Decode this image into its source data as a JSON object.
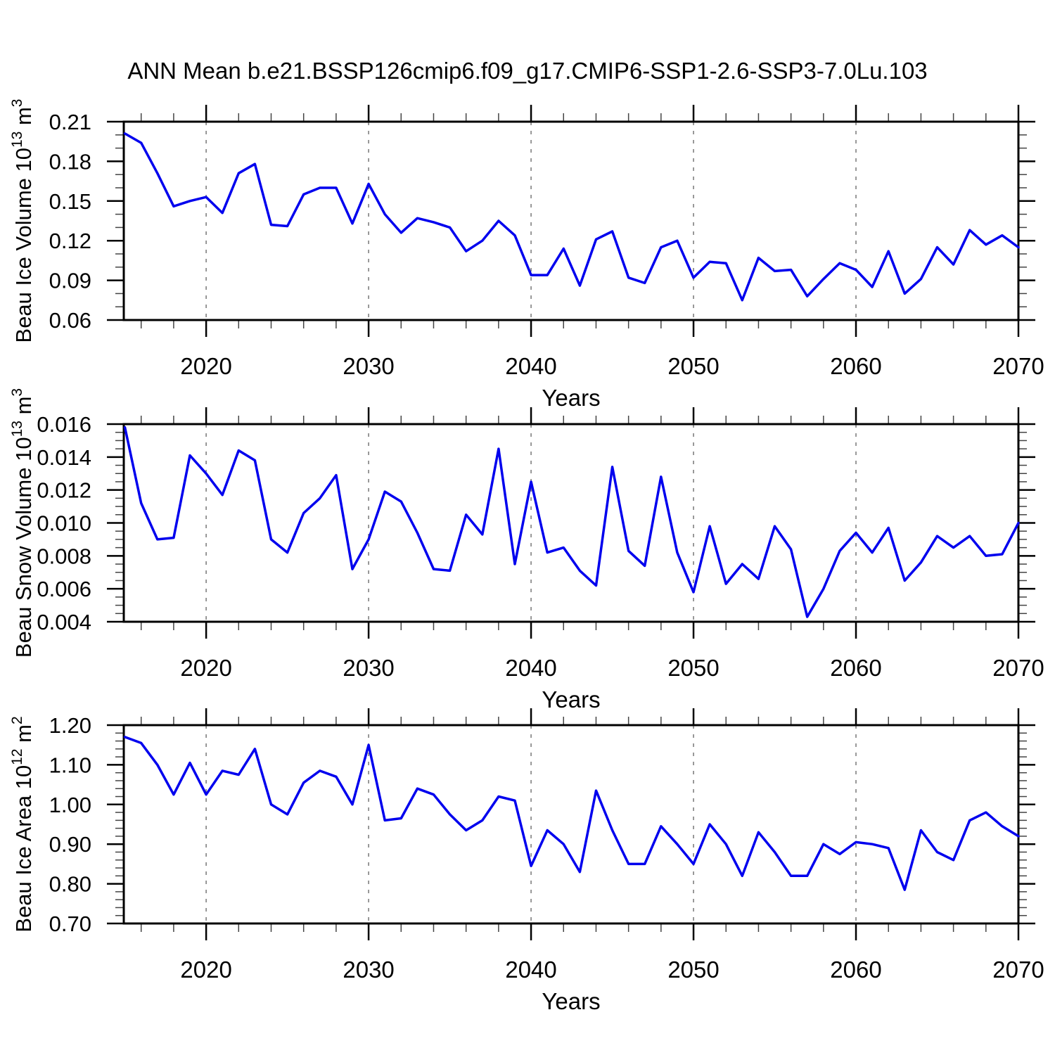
{
  "title": "ANN Mean b.e21.BSSP126cmip6.f09_g17.CMIP6-SSP1-2.6-SSP3-7.0Lu.103",
  "colors": {
    "line": "#0000EE",
    "grid": "#777777",
    "axis": "#000000"
  },
  "chart_data": [
    {
      "type": "line",
      "id": "beau-ice-volume",
      "ylabel_segments": [
        {
          "t": "Beau Ice Volume 10"
        },
        {
          "t": "13",
          "sup": true
        },
        {
          "t": " m"
        },
        {
          "t": "3",
          "sup": true
        }
      ],
      "ylabel_plain": "Beau Ice Volume 10^13 m^3",
      "xlabel": "Years",
      "xlim": [
        2014.93,
        2070
      ],
      "ylim": [
        0.06,
        0.21
      ],
      "xticks": [
        2020,
        2030,
        2040,
        2050,
        2060,
        2070
      ],
      "xtick_labels": [
        "2020",
        "2030",
        "2040",
        "2050",
        "2060",
        "2070"
      ],
      "x_minor_step": 2,
      "grid_years": [
        2020,
        2030,
        2040,
        2050,
        2060
      ],
      "yticks": [
        0.21,
        0.18,
        0.15,
        0.12,
        0.09,
        0.06
      ],
      "ytick_labels": [
        "0.21",
        "0.18",
        "0.15",
        "0.12",
        "0.09",
        "0.06"
      ],
      "y_minor_step": 0.01,
      "years": [
        2015,
        2016,
        2017,
        2018,
        2019,
        2020,
        2021,
        2022,
        2023,
        2024,
        2025,
        2026,
        2027,
        2028,
        2029,
        2030,
        2031,
        2032,
        2033,
        2034,
        2035,
        2036,
        2037,
        2038,
        2039,
        2040,
        2041,
        2042,
        2043,
        2044,
        2045,
        2046,
        2047,
        2048,
        2049,
        2050,
        2051,
        2052,
        2053,
        2054,
        2055,
        2056,
        2057,
        2058,
        2059,
        2060,
        2061,
        2062,
        2063,
        2064,
        2065,
        2066,
        2067,
        2068,
        2069,
        2070
      ],
      "values": [
        0.201,
        0.194,
        0.171,
        0.146,
        0.15,
        0.153,
        0.141,
        0.171,
        0.178,
        0.132,
        0.131,
        0.155,
        0.16,
        0.16,
        0.133,
        0.163,
        0.14,
        0.126,
        0.137,
        0.134,
        0.13,
        0.112,
        0.12,
        0.135,
        0.124,
        0.094,
        0.094,
        0.114,
        0.086,
        0.121,
        0.127,
        0.092,
        0.088,
        0.115,
        0.12,
        0.092,
        0.104,
        0.103,
        0.075,
        0.107,
        0.097,
        0.098,
        0.078,
        0.091,
        0.103,
        0.098,
        0.085,
        0.112,
        0.08,
        0.091,
        0.115,
        0.102,
        0.128,
        0.117,
        0.124,
        0.115
      ]
    },
    {
      "type": "line",
      "id": "beau-snow-volume",
      "ylabel_segments": [
        {
          "t": "Beau Snow Volume 10"
        },
        {
          "t": "13",
          "sup": true
        },
        {
          "t": " m"
        },
        {
          "t": "3",
          "sup": true
        }
      ],
      "ylabel_plain": "Beau Snow Volume 10^13 m^3",
      "xlabel": "Years",
      "xlim": [
        2014.93,
        2070
      ],
      "ylim": [
        0.004,
        0.016
      ],
      "xticks": [
        2020,
        2030,
        2040,
        2050,
        2060,
        2070
      ],
      "xtick_labels": [
        "2020",
        "2030",
        "2040",
        "2050",
        "2060",
        "2070"
      ],
      "x_minor_step": 2,
      "grid_years": [
        2020,
        2030,
        2040,
        2050,
        2060
      ],
      "yticks": [
        0.016,
        0.014,
        0.012,
        0.01,
        0.008,
        0.006,
        0.004
      ],
      "ytick_labels": [
        "0.016",
        "0.014",
        "0.012",
        "0.010",
        "0.008",
        "0.006",
        "0.004"
      ],
      "y_minor_step": 0.0005,
      "years": [
        2015,
        2016,
        2017,
        2018,
        2019,
        2020,
        2021,
        2022,
        2023,
        2024,
        2025,
        2026,
        2027,
        2028,
        2029,
        2030,
        2031,
        2032,
        2033,
        2034,
        2035,
        2036,
        2037,
        2038,
        2039,
        2040,
        2041,
        2042,
        2043,
        2044,
        2045,
        2046,
        2047,
        2048,
        2049,
        2050,
        2051,
        2052,
        2053,
        2054,
        2055,
        2056,
        2057,
        2058,
        2059,
        2060,
        2061,
        2062,
        2063,
        2064,
        2065,
        2066,
        2067,
        2068,
        2069,
        2070
      ],
      "values": [
        0.0158,
        0.0112,
        0.009,
        0.0091,
        0.0141,
        0.013,
        0.0117,
        0.0144,
        0.0138,
        0.009,
        0.0082,
        0.0106,
        0.0115,
        0.0129,
        0.0072,
        0.009,
        0.0119,
        0.0113,
        0.0094,
        0.0072,
        0.0071,
        0.0105,
        0.0093,
        0.0145,
        0.0075,
        0.0125,
        0.0082,
        0.0085,
        0.0071,
        0.0062,
        0.0134,
        0.0083,
        0.0074,
        0.0128,
        0.0082,
        0.0058,
        0.0098,
        0.0063,
        0.0075,
        0.0066,
        0.0098,
        0.0084,
        0.0043,
        0.006,
        0.0083,
        0.0094,
        0.0082,
        0.0097,
        0.0065,
        0.0076,
        0.0092,
        0.0085,
        0.0092,
        0.008,
        0.0081,
        0.01
      ]
    },
    {
      "type": "line",
      "id": "beau-ice-area",
      "ylabel_segments": [
        {
          "t": "Beau Ice Area 10"
        },
        {
          "t": "12",
          "sup": true
        },
        {
          "t": " m"
        },
        {
          "t": "2",
          "sup": true
        }
      ],
      "ylabel_plain": "Beau Ice Area 10^12 m^2",
      "xlabel": "Years",
      "xlim": [
        2014.93,
        2070
      ],
      "ylim": [
        0.7,
        1.2
      ],
      "xticks": [
        2020,
        2030,
        2040,
        2050,
        2060,
        2070
      ],
      "xtick_labels": [
        "2020",
        "2030",
        "2040",
        "2050",
        "2060",
        "2070"
      ],
      "x_minor_step": 2,
      "grid_years": [
        2020,
        2030,
        2040,
        2050,
        2060
      ],
      "yticks": [
        1.2,
        1.1,
        1.0,
        0.9,
        0.8,
        0.7
      ],
      "ytick_labels": [
        "1.20",
        "1.10",
        "1.00",
        "0.90",
        "0.80",
        "0.70"
      ],
      "y_minor_step": 0.02,
      "years": [
        2015,
        2016,
        2017,
        2018,
        2019,
        2020,
        2021,
        2022,
        2023,
        2024,
        2025,
        2026,
        2027,
        2028,
        2029,
        2030,
        2031,
        2032,
        2033,
        2034,
        2035,
        2036,
        2037,
        2038,
        2039,
        2040,
        2041,
        2042,
        2043,
        2044,
        2045,
        2046,
        2047,
        2048,
        2049,
        2050,
        2051,
        2052,
        2053,
        2054,
        2055,
        2056,
        2057,
        2058,
        2059,
        2060,
        2061,
        2062,
        2063,
        2064,
        2065,
        2066,
        2067,
        2068,
        2069,
        2070
      ],
      "values": [
        1.17,
        1.155,
        1.1,
        1.025,
        1.105,
        1.025,
        1.085,
        1.075,
        1.14,
        1.0,
        0.975,
        1.055,
        1.085,
        1.07,
        1.0,
        1.15,
        0.96,
        0.965,
        1.04,
        1.025,
        0.975,
        0.935,
        0.96,
        1.02,
        1.01,
        0.845,
        0.935,
        0.9,
        0.83,
        1.035,
        0.935,
        0.85,
        0.85,
        0.945,
        0.9,
        0.85,
        0.95,
        0.9,
        0.82,
        0.93,
        0.88,
        0.82,
        0.82,
        0.9,
        0.875,
        0.905,
        0.9,
        0.89,
        0.785,
        0.935,
        0.88,
        0.86,
        0.96,
        0.98,
        0.945,
        0.92
      ]
    }
  ]
}
